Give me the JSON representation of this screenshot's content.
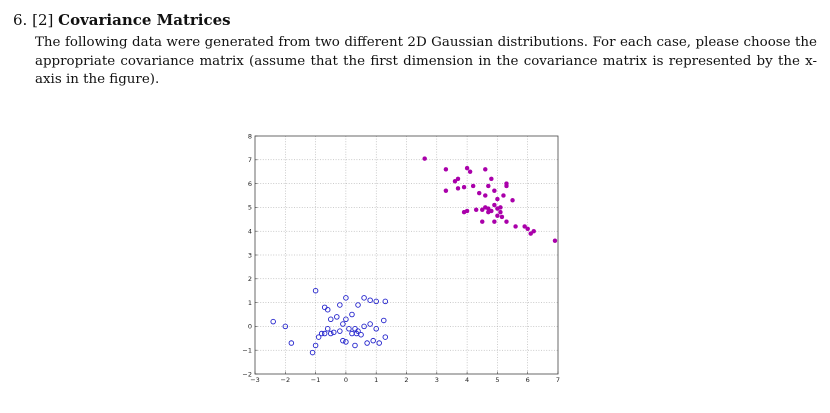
{
  "question": {
    "number": "6.",
    "points": "[2]",
    "title": "Covariance Matrices",
    "body": "The following data were generated from two different 2D Gaussian distributions. For each case, please choose the appropriate covariance matrix (assume that the first dimension in the covariance matrix is represented by the x-axis in the figure)."
  },
  "chart_data": {
    "type": "scatter",
    "title": "",
    "xlabel": "",
    "ylabel": "",
    "xlim": [
      -3,
      7
    ],
    "ylim": [
      -2,
      8
    ],
    "xticks": [
      -3,
      -2,
      -1,
      0,
      1,
      2,
      3,
      4,
      5,
      6,
      7
    ],
    "yticks": [
      -2,
      -1,
      0,
      1,
      2,
      3,
      4,
      5,
      6,
      7,
      8
    ],
    "grid": true,
    "grid_style": "dotted",
    "series": [
      {
        "marker": "open-circle",
        "color": "#2222cc",
        "points": [
          [
            -1.0,
            1.5
          ],
          [
            -0.7,
            0.8
          ],
          [
            -0.6,
            0.7
          ],
          [
            -0.5,
            0.3
          ],
          [
            -0.3,
            0.4
          ],
          [
            -0.2,
            0.9
          ],
          [
            0.0,
            1.2
          ],
          [
            0.2,
            0.5
          ],
          [
            0.4,
            0.9
          ],
          [
            0.6,
            1.2
          ],
          [
            0.8,
            1.1
          ],
          [
            1.0,
            1.05
          ],
          [
            1.3,
            1.05
          ],
          [
            -2.4,
            0.2
          ],
          [
            -2.0,
            0.0
          ],
          [
            -1.8,
            -0.7
          ],
          [
            -1.0,
            -0.8
          ],
          [
            -1.1,
            -1.1
          ],
          [
            -0.8,
            -0.3
          ],
          [
            -0.7,
            -0.3
          ],
          [
            -0.6,
            -0.1
          ],
          [
            -0.5,
            -0.3
          ],
          [
            -0.4,
            -0.25
          ],
          [
            -0.2,
            -0.2
          ],
          [
            -0.1,
            0.1
          ],
          [
            0.0,
            0.3
          ],
          [
            0.1,
            -0.1
          ],
          [
            0.2,
            -0.3
          ],
          [
            0.3,
            -0.1
          ],
          [
            0.35,
            -0.3
          ],
          [
            0.4,
            -0.2
          ],
          [
            0.5,
            -0.35
          ],
          [
            0.6,
            0.0
          ],
          [
            0.8,
            0.1
          ],
          [
            1.0,
            -0.1
          ],
          [
            1.25,
            0.25
          ],
          [
            -0.1,
            -0.6
          ],
          [
            0.0,
            -0.65
          ],
          [
            0.3,
            -0.8
          ],
          [
            0.7,
            -0.7
          ],
          [
            0.9,
            -0.6
          ],
          [
            1.1,
            -0.7
          ],
          [
            1.3,
            -0.45
          ],
          [
            -0.9,
            -0.45
          ]
        ]
      },
      {
        "marker": "filled-circle",
        "color": "#aa00aa",
        "points": [
          [
            2.6,
            7.05
          ],
          [
            3.3,
            6.6
          ],
          [
            3.3,
            5.7
          ],
          [
            3.6,
            6.1
          ],
          [
            3.7,
            6.2
          ],
          [
            3.7,
            5.8
          ],
          [
            3.9,
            5.85
          ],
          [
            4.0,
            6.65
          ],
          [
            4.1,
            6.5
          ],
          [
            4.2,
            5.9
          ],
          [
            4.4,
            5.6
          ],
          [
            4.6,
            6.6
          ],
          [
            4.6,
            5.5
          ],
          [
            4.7,
            5.9
          ],
          [
            4.8,
            6.2
          ],
          [
            4.9,
            5.7
          ],
          [
            5.0,
            5.35
          ],
          [
            5.1,
            5.0
          ],
          [
            5.3,
            6.0
          ],
          [
            5.3,
            5.9
          ],
          [
            5.2,
            5.5
          ],
          [
            5.5,
            5.3
          ],
          [
            3.9,
            4.8
          ],
          [
            4.0,
            4.85
          ],
          [
            4.3,
            4.9
          ],
          [
            4.5,
            4.9
          ],
          [
            4.6,
            5.0
          ],
          [
            4.7,
            4.95
          ],
          [
            4.8,
            4.85
          ],
          [
            4.9,
            5.1
          ],
          [
            5.0,
            4.95
          ],
          [
            5.1,
            4.8
          ],
          [
            5.15,
            4.6
          ],
          [
            5.3,
            4.4
          ],
          [
            5.6,
            4.2
          ],
          [
            5.9,
            4.2
          ],
          [
            6.0,
            4.1
          ],
          [
            6.2,
            4.0
          ],
          [
            6.1,
            3.9
          ],
          [
            6.9,
            3.6
          ],
          [
            4.5,
            4.4
          ],
          [
            4.9,
            4.4
          ],
          [
            5.0,
            4.65
          ],
          [
            4.7,
            4.8
          ]
        ]
      }
    ]
  }
}
